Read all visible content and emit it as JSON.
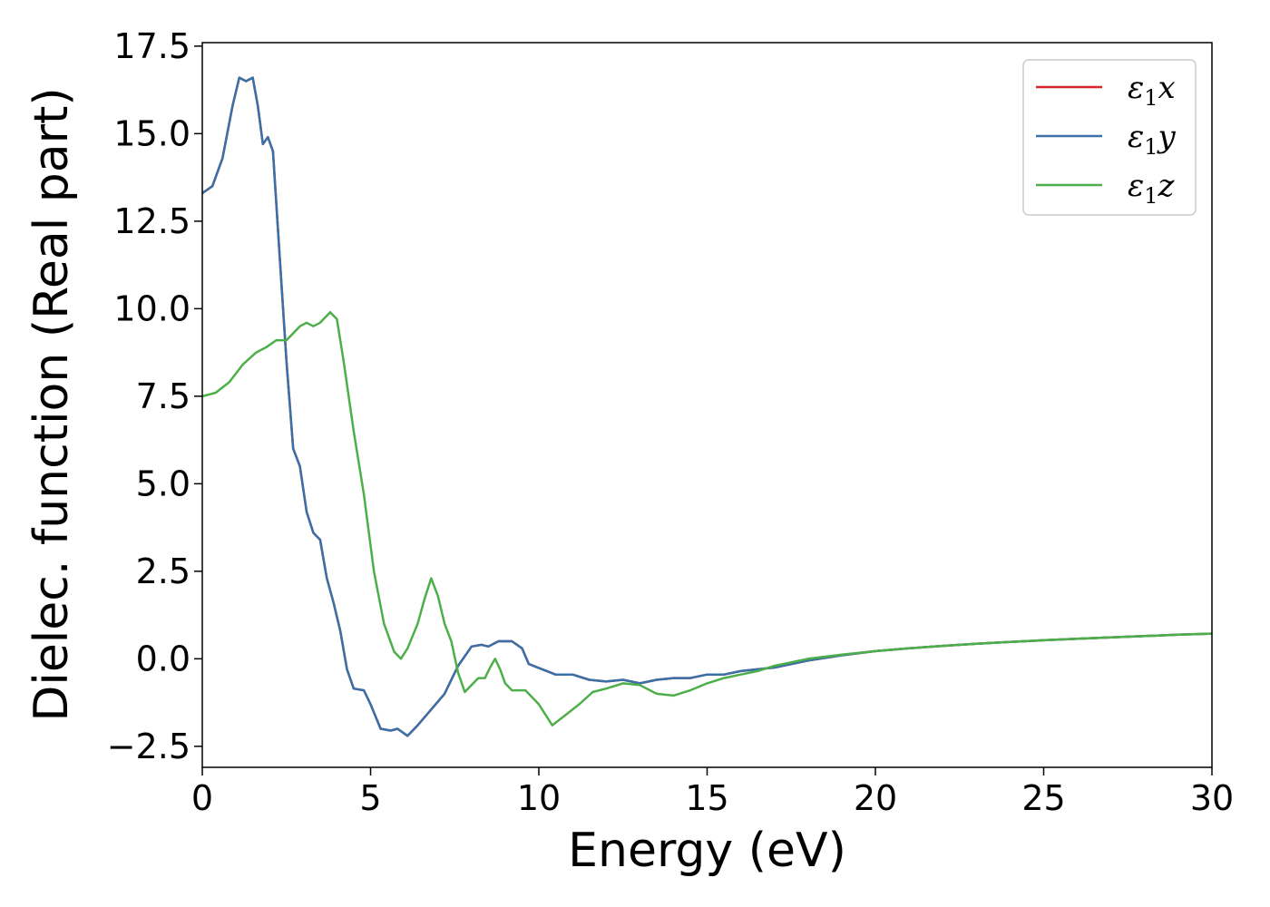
{
  "chart_data": {
    "type": "line",
    "xlabel": "Energy (eV)",
    "ylabel": "Dielec. function (Real part)",
    "xlim": [
      0,
      30
    ],
    "ylim": [
      -3.1,
      17.6
    ],
    "x_ticks": [
      0,
      5,
      10,
      15,
      20,
      25,
      30
    ],
    "x_tick_labels": [
      "0",
      "5",
      "10",
      "15",
      "20",
      "25",
      "30"
    ],
    "y_ticks": [
      -2.5,
      0.0,
      2.5,
      5.0,
      7.5,
      10.0,
      12.5,
      15.0,
      17.5
    ],
    "y_tick_labels": [
      "−2.5",
      "0.0",
      "2.5",
      "5.0",
      "7.5",
      "10.0",
      "12.5",
      "15.0",
      "17.5"
    ],
    "grid": false,
    "legend_position": "top-right",
    "series": [
      {
        "name": "ε₁x",
        "legend_main": "ε",
        "legend_sub": "1",
        "legend_tail": "x",
        "color": "#d62728",
        "points": [
          [
            0,
            13.3
          ],
          [
            0.3,
            13.5
          ],
          [
            0.6,
            14.3
          ],
          [
            0.9,
            15.8
          ],
          [
            1.1,
            16.6
          ],
          [
            1.3,
            16.5
          ],
          [
            1.5,
            16.6
          ],
          [
            1.65,
            15.8
          ],
          [
            1.8,
            14.7
          ],
          [
            1.95,
            14.9
          ],
          [
            2.1,
            14.5
          ],
          [
            2.3,
            11.5
          ],
          [
            2.5,
            8.5
          ],
          [
            2.7,
            6.0
          ],
          [
            2.9,
            5.5
          ],
          [
            3.1,
            4.2
          ],
          [
            3.3,
            3.6
          ],
          [
            3.5,
            3.4
          ],
          [
            3.7,
            2.3
          ],
          [
            3.9,
            1.6
          ],
          [
            4.1,
            0.8
          ],
          [
            4.3,
            -0.3
          ],
          [
            4.5,
            -0.85
          ],
          [
            4.8,
            -0.9
          ],
          [
            5.0,
            -1.3
          ],
          [
            5.3,
            -2.0
          ],
          [
            5.6,
            -2.05
          ],
          [
            5.8,
            -2.0
          ],
          [
            6.1,
            -2.2
          ],
          [
            6.4,
            -1.9
          ],
          [
            6.8,
            -1.45
          ],
          [
            7.2,
            -1.0
          ],
          [
            7.6,
            -0.2
          ],
          [
            8.0,
            0.35
          ],
          [
            8.3,
            0.4
          ],
          [
            8.5,
            0.35
          ],
          [
            8.8,
            0.5
          ],
          [
            9.2,
            0.5
          ],
          [
            9.5,
            0.3
          ],
          [
            9.7,
            -0.15
          ],
          [
            10.1,
            -0.3
          ],
          [
            10.5,
            -0.45
          ],
          [
            11.0,
            -0.45
          ],
          [
            11.5,
            -0.6
          ],
          [
            12.0,
            -0.65
          ],
          [
            12.5,
            -0.6
          ],
          [
            13.0,
            -0.7
          ],
          [
            13.5,
            -0.6
          ],
          [
            14.0,
            -0.55
          ],
          [
            14.5,
            -0.55
          ],
          [
            15.0,
            -0.45
          ],
          [
            15.5,
            -0.45
          ],
          [
            16.0,
            -0.35
          ],
          [
            16.5,
            -0.3
          ],
          [
            17.0,
            -0.25
          ],
          [
            17.5,
            -0.15
          ],
          [
            18.0,
            -0.05
          ],
          [
            19.0,
            0.1
          ],
          [
            20.0,
            0.22
          ],
          [
            21.0,
            0.3
          ],
          [
            22.0,
            0.37
          ],
          [
            23.0,
            0.43
          ],
          [
            24.0,
            0.48
          ],
          [
            25.0,
            0.53
          ],
          [
            26.0,
            0.57
          ],
          [
            27.0,
            0.61
          ],
          [
            28.0,
            0.65
          ],
          [
            29.0,
            0.69
          ],
          [
            30.0,
            0.72
          ]
        ]
      },
      {
        "name": "ε₁y",
        "legend_main": "ε",
        "legend_sub": "1",
        "legend_tail": "y",
        "color": "#3a70a8",
        "points": [
          [
            0,
            13.3
          ],
          [
            0.3,
            13.5
          ],
          [
            0.6,
            14.3
          ],
          [
            0.9,
            15.8
          ],
          [
            1.1,
            16.6
          ],
          [
            1.3,
            16.5
          ],
          [
            1.5,
            16.6
          ],
          [
            1.65,
            15.8
          ],
          [
            1.8,
            14.7
          ],
          [
            1.95,
            14.9
          ],
          [
            2.1,
            14.5
          ],
          [
            2.3,
            11.5
          ],
          [
            2.5,
            8.5
          ],
          [
            2.7,
            6.0
          ],
          [
            2.9,
            5.5
          ],
          [
            3.1,
            4.2
          ],
          [
            3.3,
            3.6
          ],
          [
            3.5,
            3.4
          ],
          [
            3.7,
            2.3
          ],
          [
            3.9,
            1.6
          ],
          [
            4.1,
            0.8
          ],
          [
            4.3,
            -0.3
          ],
          [
            4.5,
            -0.85
          ],
          [
            4.8,
            -0.9
          ],
          [
            5.0,
            -1.3
          ],
          [
            5.3,
            -2.0
          ],
          [
            5.6,
            -2.05
          ],
          [
            5.8,
            -2.0
          ],
          [
            6.1,
            -2.2
          ],
          [
            6.4,
            -1.9
          ],
          [
            6.8,
            -1.45
          ],
          [
            7.2,
            -1.0
          ],
          [
            7.6,
            -0.2
          ],
          [
            8.0,
            0.35
          ],
          [
            8.3,
            0.4
          ],
          [
            8.5,
            0.35
          ],
          [
            8.8,
            0.5
          ],
          [
            9.2,
            0.5
          ],
          [
            9.5,
            0.3
          ],
          [
            9.7,
            -0.15
          ],
          [
            10.1,
            -0.3
          ],
          [
            10.5,
            -0.45
          ],
          [
            11.0,
            -0.45
          ],
          [
            11.5,
            -0.6
          ],
          [
            12.0,
            -0.65
          ],
          [
            12.5,
            -0.6
          ],
          [
            13.0,
            -0.7
          ],
          [
            13.5,
            -0.6
          ],
          [
            14.0,
            -0.55
          ],
          [
            14.5,
            -0.55
          ],
          [
            15.0,
            -0.45
          ],
          [
            15.5,
            -0.45
          ],
          [
            16.0,
            -0.35
          ],
          [
            16.5,
            -0.3
          ],
          [
            17.0,
            -0.25
          ],
          [
            17.5,
            -0.15
          ],
          [
            18.0,
            -0.05
          ],
          [
            19.0,
            0.1
          ],
          [
            20.0,
            0.22
          ],
          [
            21.0,
            0.3
          ],
          [
            22.0,
            0.37
          ],
          [
            23.0,
            0.43
          ],
          [
            24.0,
            0.48
          ],
          [
            25.0,
            0.53
          ],
          [
            26.0,
            0.57
          ],
          [
            27.0,
            0.61
          ],
          [
            28.0,
            0.65
          ],
          [
            29.0,
            0.69
          ],
          [
            30.0,
            0.72
          ]
        ]
      },
      {
        "name": "ε₁z",
        "legend_main": "ε",
        "legend_sub": "1",
        "legend_tail": "z",
        "color": "#4daf4a",
        "points": [
          [
            0,
            7.5
          ],
          [
            0.4,
            7.6
          ],
          [
            0.8,
            7.9
          ],
          [
            1.2,
            8.4
          ],
          [
            1.6,
            8.75
          ],
          [
            1.9,
            8.9
          ],
          [
            2.2,
            9.1
          ],
          [
            2.5,
            9.1
          ],
          [
            2.9,
            9.5
          ],
          [
            3.1,
            9.6
          ],
          [
            3.3,
            9.5
          ],
          [
            3.5,
            9.6
          ],
          [
            3.8,
            9.9
          ],
          [
            4.0,
            9.7
          ],
          [
            4.2,
            8.5
          ],
          [
            4.5,
            6.5
          ],
          [
            4.8,
            4.7
          ],
          [
            5.1,
            2.5
          ],
          [
            5.4,
            1.0
          ],
          [
            5.7,
            0.2
          ],
          [
            5.9,
            0.0
          ],
          [
            6.1,
            0.3
          ],
          [
            6.4,
            1.0
          ],
          [
            6.6,
            1.7
          ],
          [
            6.8,
            2.3
          ],
          [
            7.0,
            1.8
          ],
          [
            7.2,
            1.0
          ],
          [
            7.4,
            0.5
          ],
          [
            7.6,
            -0.4
          ],
          [
            7.8,
            -0.95
          ],
          [
            8.0,
            -0.75
          ],
          [
            8.2,
            -0.55
          ],
          [
            8.4,
            -0.55
          ],
          [
            8.55,
            -0.25
          ],
          [
            8.7,
            0.0
          ],
          [
            8.85,
            -0.3
          ],
          [
            9.0,
            -0.7
          ],
          [
            9.2,
            -0.9
          ],
          [
            9.6,
            -0.9
          ],
          [
            10.0,
            -1.3
          ],
          [
            10.4,
            -1.9
          ],
          [
            10.8,
            -1.6
          ],
          [
            11.2,
            -1.3
          ],
          [
            11.6,
            -0.95
          ],
          [
            12.0,
            -0.85
          ],
          [
            12.5,
            -0.7
          ],
          [
            13.0,
            -0.75
          ],
          [
            13.5,
            -1.0
          ],
          [
            14.0,
            -1.05
          ],
          [
            14.5,
            -0.9
          ],
          [
            15.0,
            -0.7
          ],
          [
            15.5,
            -0.55
          ],
          [
            16.0,
            -0.45
          ],
          [
            16.5,
            -0.35
          ],
          [
            17.0,
            -0.2
          ],
          [
            17.5,
            -0.1
          ],
          [
            18.0,
            0.0
          ],
          [
            19.0,
            0.12
          ],
          [
            20.0,
            0.22
          ],
          [
            21.0,
            0.3
          ],
          [
            22.0,
            0.37
          ],
          [
            23.0,
            0.43
          ],
          [
            24.0,
            0.48
          ],
          [
            25.0,
            0.53
          ],
          [
            26.0,
            0.57
          ],
          [
            27.0,
            0.61
          ],
          [
            28.0,
            0.65
          ],
          [
            29.0,
            0.69
          ],
          [
            30.0,
            0.72
          ]
        ]
      }
    ]
  }
}
